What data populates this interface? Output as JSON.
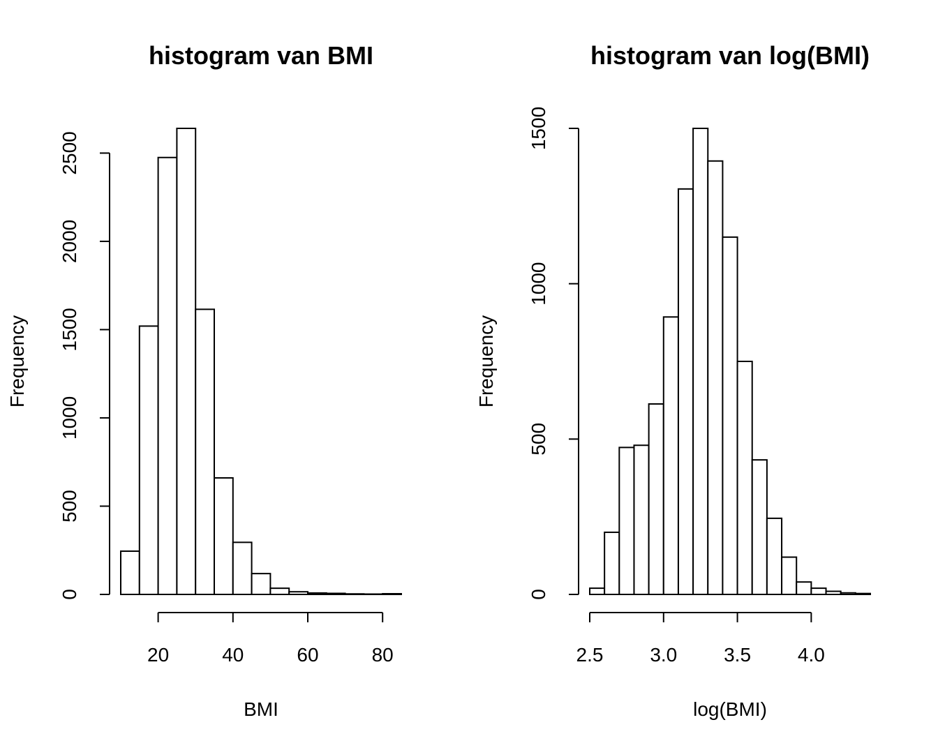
{
  "chart_data": [
    {
      "type": "bar",
      "title": "histogram van BMI",
      "xlabel": "BMI",
      "ylabel": "Frequency",
      "bin_edges": [
        10,
        15,
        20,
        25,
        30,
        35,
        40,
        45,
        50,
        55,
        60,
        65,
        70,
        75,
        80,
        85
      ],
      "values": [
        245,
        1520,
        2475,
        2640,
        1615,
        660,
        295,
        118,
        35,
        15,
        8,
        6,
        3,
        2,
        4
      ],
      "xticks": [
        20,
        40,
        60,
        80
      ],
      "xtick_labels": [
        "20",
        "40",
        "60",
        "80"
      ],
      "yticks": [
        0,
        500,
        1000,
        1500,
        2000,
        2500
      ],
      "ytick_labels": [
        "0",
        "500",
        "1000",
        "1500",
        "2000",
        "2500"
      ],
      "xlim": [
        10,
        85
      ],
      "ylim": [
        0,
        2640
      ],
      "grid": false
    },
    {
      "type": "bar",
      "title": "histogram van log(BMI)",
      "xlabel": "log(BMI)",
      "ylabel": "Frequency",
      "bin_edges": [
        2.5,
        2.6,
        2.7,
        2.8,
        2.9,
        3.0,
        3.1,
        3.2,
        3.3,
        3.4,
        3.5,
        3.6,
        3.7,
        3.8,
        3.9,
        4.0,
        4.1,
        4.2,
        4.3,
        4.4
      ],
      "values": [
        20,
        200,
        473,
        480,
        613,
        893,
        1305,
        1500,
        1395,
        1150,
        750,
        433,
        245,
        120,
        40,
        20,
        10,
        5,
        3
      ],
      "xticks": [
        2.5,
        3.0,
        3.5,
        4.0
      ],
      "xtick_labels": [
        "2.5",
        "3.0",
        "3.5",
        "4.0"
      ],
      "yticks": [
        0,
        500,
        1000,
        1500
      ],
      "ytick_labels": [
        "0",
        "500",
        "1000",
        "1500"
      ],
      "xlim": [
        2.5,
        4.4
      ],
      "ylim": [
        0,
        1500
      ],
      "grid": false
    }
  ]
}
